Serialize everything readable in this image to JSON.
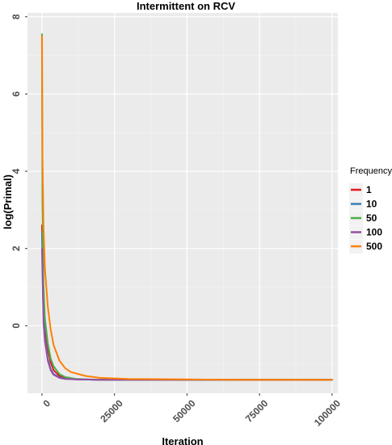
{
  "chart_data": {
    "type": "line",
    "title": "Intermittent on RCV",
    "xlabel": "Iteration",
    "ylabel": "log(Primal)",
    "xlim": [
      -5000,
      102000
    ],
    "ylim": [
      -1.75,
      8.1
    ],
    "x_ticks": [
      0,
      25000,
      50000,
      75000,
      100000
    ],
    "x_tick_labels": [
      "0",
      "25000",
      "50000",
      "75000",
      "100000"
    ],
    "y_ticks": [
      0,
      2,
      4,
      6,
      8
    ],
    "y_tick_labels": [
      "0",
      "2",
      "4",
      "6",
      "8"
    ],
    "grid": true,
    "legend_position": "right",
    "legend_title": "Frequency",
    "series": [
      {
        "name": "1",
        "color": "#e41a1c",
        "points": [
          [
            0,
            2.6
          ],
          [
            500,
            0.6
          ],
          [
            1000,
            0.0
          ],
          [
            2000,
            -0.6
          ],
          [
            3000,
            -0.95
          ],
          [
            4000,
            -1.15
          ],
          [
            6000,
            -1.3
          ],
          [
            8000,
            -1.36
          ],
          [
            12000,
            -1.39
          ],
          [
            20000,
            -1.4
          ],
          [
            40000,
            -1.4
          ],
          [
            70000,
            -1.4
          ],
          [
            100000,
            -1.4
          ]
        ]
      },
      {
        "name": "10",
        "color": "#377eb8",
        "points": [
          [
            0,
            2.4
          ],
          [
            500,
            0.3
          ],
          [
            1000,
            -0.3
          ],
          [
            2000,
            -0.85
          ],
          [
            3000,
            -1.12
          ],
          [
            4000,
            -1.25
          ],
          [
            6000,
            -1.34
          ],
          [
            8000,
            -1.37
          ],
          [
            12000,
            -1.39
          ],
          [
            20000,
            -1.4
          ],
          [
            40000,
            -1.4
          ],
          [
            70000,
            -1.4
          ],
          [
            100000,
            -1.4
          ]
        ]
      },
      {
        "name": "50",
        "color": "#4daf4a",
        "points": [
          [
            0,
            7.55
          ],
          [
            150,
            3.2
          ],
          [
            500,
            1.1
          ],
          [
            1000,
            0.2
          ],
          [
            2000,
            -0.45
          ],
          [
            3000,
            -0.85
          ],
          [
            4000,
            -1.05
          ],
          [
            6000,
            -1.25
          ],
          [
            8000,
            -1.33
          ],
          [
            12000,
            -1.38
          ],
          [
            20000,
            -1.4
          ],
          [
            40000,
            -1.4
          ],
          [
            70000,
            -1.4
          ],
          [
            100000,
            -1.4
          ]
        ]
      },
      {
        "name": "100",
        "color": "#984ea3",
        "points": [
          [
            0,
            2.0
          ],
          [
            500,
            0.1
          ],
          [
            1000,
            -0.4
          ],
          [
            2000,
            -0.9
          ],
          [
            3000,
            -1.15
          ],
          [
            4000,
            -1.27
          ],
          [
            6000,
            -1.35
          ],
          [
            8000,
            -1.38
          ],
          [
            12000,
            -1.39
          ],
          [
            20000,
            -1.4
          ],
          [
            40000,
            -1.4
          ],
          [
            70000,
            -1.4
          ],
          [
            100000,
            -1.4
          ]
        ]
      },
      {
        "name": "500",
        "color": "#ff7f00",
        "points": [
          [
            0,
            7.5
          ],
          [
            150,
            4.5
          ],
          [
            500,
            2.6
          ],
          [
            1000,
            1.5
          ],
          [
            2000,
            0.5
          ],
          [
            3000,
            -0.1
          ],
          [
            4000,
            -0.5
          ],
          [
            6000,
            -0.9
          ],
          [
            8000,
            -1.1
          ],
          [
            10000,
            -1.2
          ],
          [
            15000,
            -1.3
          ],
          [
            20000,
            -1.35
          ],
          [
            30000,
            -1.38
          ],
          [
            50000,
            -1.39
          ],
          [
            70000,
            -1.4
          ],
          [
            100000,
            -1.4
          ]
        ]
      }
    ]
  }
}
